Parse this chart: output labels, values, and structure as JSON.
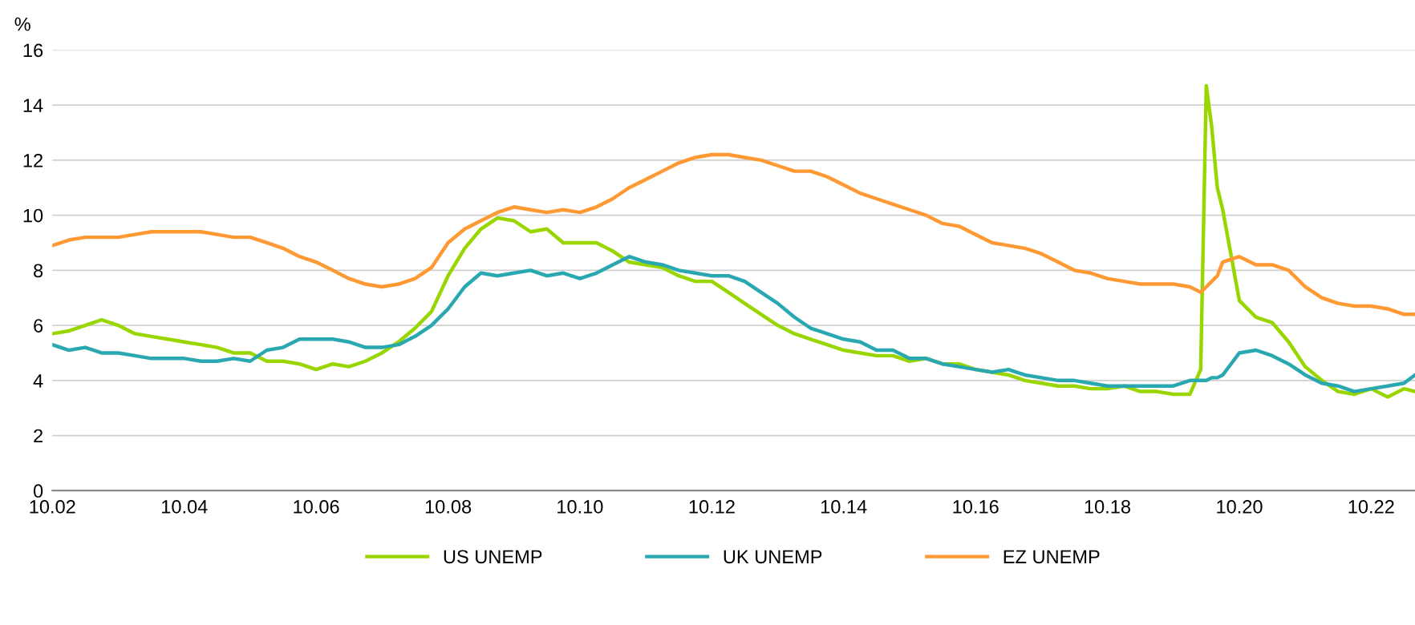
{
  "chart_data": {
    "type": "line",
    "ylabel": "%",
    "legend": "bottom",
    "grid": "y",
    "marker": "none",
    "line_style": "solid",
    "x": [
      "2002-10",
      "2003-01",
      "2003-04",
      "2003-07",
      "2003-10",
      "2004-01",
      "2004-04",
      "2004-07",
      "2004-10",
      "2005-01",
      "2005-04",
      "2005-07",
      "2005-10",
      "2006-01",
      "2006-04",
      "2006-07",
      "2006-10",
      "2007-01",
      "2007-04",
      "2007-07",
      "2007-10",
      "2008-01",
      "2008-04",
      "2008-07",
      "2008-10",
      "2009-01",
      "2009-04",
      "2009-07",
      "2009-10",
      "2010-01",
      "2010-04",
      "2010-07",
      "2010-10",
      "2011-01",
      "2011-04",
      "2011-07",
      "2011-10",
      "2012-01",
      "2012-04",
      "2012-07",
      "2012-10",
      "2013-01",
      "2013-04",
      "2013-07",
      "2013-10",
      "2014-01",
      "2014-04",
      "2014-07",
      "2014-10",
      "2015-01",
      "2015-04",
      "2015-07",
      "2015-10",
      "2016-01",
      "2016-04",
      "2016-07",
      "2016-10",
      "2017-01",
      "2017-04",
      "2017-07",
      "2017-10",
      "2018-01",
      "2018-04",
      "2018-07",
      "2018-10",
      "2019-01",
      "2019-04",
      "2019-07",
      "2019-10",
      "2020-01",
      "2020-03",
      "2020-04",
      "2020-05",
      "2020-06",
      "2020-07",
      "2020-10",
      "2021-01",
      "2021-04",
      "2021-07",
      "2021-10",
      "2022-01",
      "2022-04",
      "2022-07",
      "2022-10",
      "2023-01",
      "2023-04",
      "2023-06"
    ],
    "series": [
      {
        "name": "US UNEMP",
        "color": "#99d600",
        "values": [
          5.7,
          5.8,
          6.0,
          6.2,
          6.0,
          5.7,
          5.6,
          5.5,
          5.4,
          5.3,
          5.2,
          5.0,
          5.0,
          4.7,
          4.7,
          4.6,
          4.4,
          4.6,
          4.5,
          4.7,
          5.0,
          5.4,
          5.9,
          6.5,
          7.8,
          8.8,
          9.5,
          9.9,
          9.8,
          9.4,
          9.5,
          9.0,
          9.0,
          9.0,
          8.7,
          8.3,
          8.2,
          8.1,
          7.8,
          7.6,
          7.6,
          7.2,
          6.8,
          6.4,
          6.0,
          5.7,
          5.5,
          5.3,
          5.1,
          5.0,
          4.9,
          4.9,
          4.7,
          4.8,
          4.6,
          4.6,
          4.4,
          4.3,
          4.2,
          4.0,
          3.9,
          3.8,
          3.8,
          3.7,
          3.7,
          3.8,
          3.6,
          3.6,
          3.5,
          3.5,
          4.4,
          14.7,
          13.2,
          11.0,
          10.2,
          6.9,
          6.3,
          6.1,
          5.4,
          4.5,
          4.0,
          3.6,
          3.5,
          3.7,
          3.4,
          3.7,
          3.6
        ]
      },
      {
        "name": "UK UNEMP",
        "color": "#2aa8b2",
        "values": [
          5.3,
          5.1,
          5.2,
          5.0,
          5.0,
          4.9,
          4.8,
          4.8,
          4.8,
          4.7,
          4.7,
          4.8,
          4.7,
          5.1,
          5.2,
          5.5,
          5.5,
          5.5,
          5.4,
          5.2,
          5.2,
          5.3,
          5.6,
          6.0,
          6.6,
          7.4,
          7.9,
          7.8,
          7.9,
          8.0,
          7.8,
          7.9,
          7.7,
          7.9,
          8.2,
          8.5,
          8.3,
          8.2,
          8.0,
          7.9,
          7.8,
          7.8,
          7.6,
          7.2,
          6.8,
          6.3,
          5.9,
          5.7,
          5.5,
          5.4,
          5.1,
          5.1,
          4.8,
          4.8,
          4.6,
          4.5,
          4.4,
          4.3,
          4.4,
          4.2,
          4.1,
          4.0,
          4.0,
          3.9,
          3.8,
          3.8,
          3.8,
          3.8,
          3.8,
          4.0,
          4.0,
          4.0,
          4.1,
          4.1,
          4.2,
          5.0,
          5.1,
          4.9,
          4.6,
          4.2,
          3.9,
          3.8,
          3.6,
          3.7,
          3.8,
          3.9,
          4.2
        ]
      },
      {
        "name": "EZ UNEMP",
        "color": "#ff9933",
        "values": [
          8.9,
          9.1,
          9.2,
          9.2,
          9.2,
          9.3,
          9.4,
          9.4,
          9.4,
          9.4,
          9.3,
          9.2,
          9.2,
          9.0,
          8.8,
          8.5,
          8.3,
          8.0,
          7.7,
          7.5,
          7.4,
          7.5,
          7.7,
          8.1,
          9.0,
          9.5,
          9.8,
          10.1,
          10.3,
          10.2,
          10.1,
          10.2,
          10.1,
          10.3,
          10.6,
          11.0,
          11.3,
          11.6,
          11.9,
          12.1,
          12.2,
          12.2,
          12.1,
          12.0,
          11.8,
          11.6,
          11.6,
          11.4,
          11.1,
          10.8,
          10.6,
          10.4,
          10.2,
          10.0,
          9.7,
          9.6,
          9.3,
          9.0,
          8.9,
          8.8,
          8.6,
          8.3,
          8.0,
          7.9,
          7.7,
          7.6,
          7.5,
          7.5,
          7.5,
          7.4,
          7.2,
          7.4,
          7.6,
          7.8,
          8.3,
          8.5,
          8.2,
          8.2,
          8.0,
          7.4,
          7.0,
          6.8,
          6.7,
          6.7,
          6.6,
          6.4,
          6.4
        ]
      }
    ],
    "xlim": [
      "2002-10",
      "2023-06"
    ],
    "xticks": [
      {
        "value": "2002-10",
        "label": "10.02"
      },
      {
        "value": "2004-10",
        "label": "10.04"
      },
      {
        "value": "2006-10",
        "label": "10.06"
      },
      {
        "value": "2008-10",
        "label": "10.08"
      },
      {
        "value": "2010-10",
        "label": "10.10"
      },
      {
        "value": "2012-10",
        "label": "10.12"
      },
      {
        "value": "2014-10",
        "label": "10.14"
      },
      {
        "value": "2016-10",
        "label": "10.16"
      },
      {
        "value": "2018-10",
        "label": "10.18"
      },
      {
        "value": "2020-10",
        "label": "10.20"
      },
      {
        "value": "2022-10",
        "label": "10.22"
      }
    ],
    "ylim": [
      0,
      16
    ],
    "yticks": [
      0,
      2,
      4,
      6,
      8,
      10,
      12,
      14,
      16
    ]
  }
}
